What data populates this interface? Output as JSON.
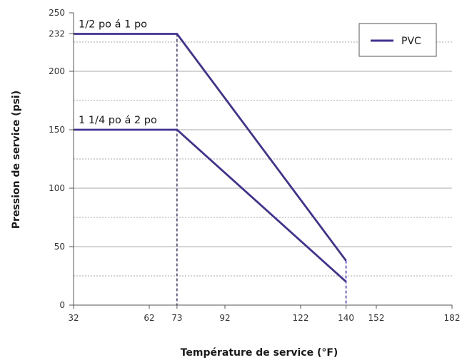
{
  "chart_data": {
    "type": "line",
    "xlabel": "Température de service (°F)",
    "ylabel": "Pression de service (psi)",
    "xlim": [
      32,
      182
    ],
    "ylim": [
      0,
      250
    ],
    "x_ticks": [
      32,
      62,
      73,
      92,
      122,
      140,
      152,
      182
    ],
    "y_ticks": [
      0,
      50,
      100,
      150,
      200,
      232,
      250
    ],
    "y_grid_solid": [
      50,
      100,
      150,
      200
    ],
    "y_grid_dashed": [
      25,
      75,
      125,
      175,
      225
    ],
    "x_markers_dashed": [
      73,
      140
    ],
    "series": [
      {
        "name": "PVC",
        "x": [
          32,
          73,
          140
        ],
        "y": [
          232,
          232,
          38
        ]
      },
      {
        "name": "PVC",
        "x": [
          32,
          73,
          140
        ],
        "y": [
          150,
          150,
          20
        ]
      }
    ],
    "annotations": [
      {
        "text": "1/2 po á 1 po",
        "x": 32,
        "y": 232
      },
      {
        "text": "1 1/4 po á 2 po",
        "x": 32,
        "y": 150
      }
    ],
    "legend": {
      "position": "top-right",
      "entries": [
        "PVC"
      ]
    },
    "colors": {
      "line": "#3f3290",
      "grid": "#aaaaaa",
      "axis": "#555555"
    }
  }
}
